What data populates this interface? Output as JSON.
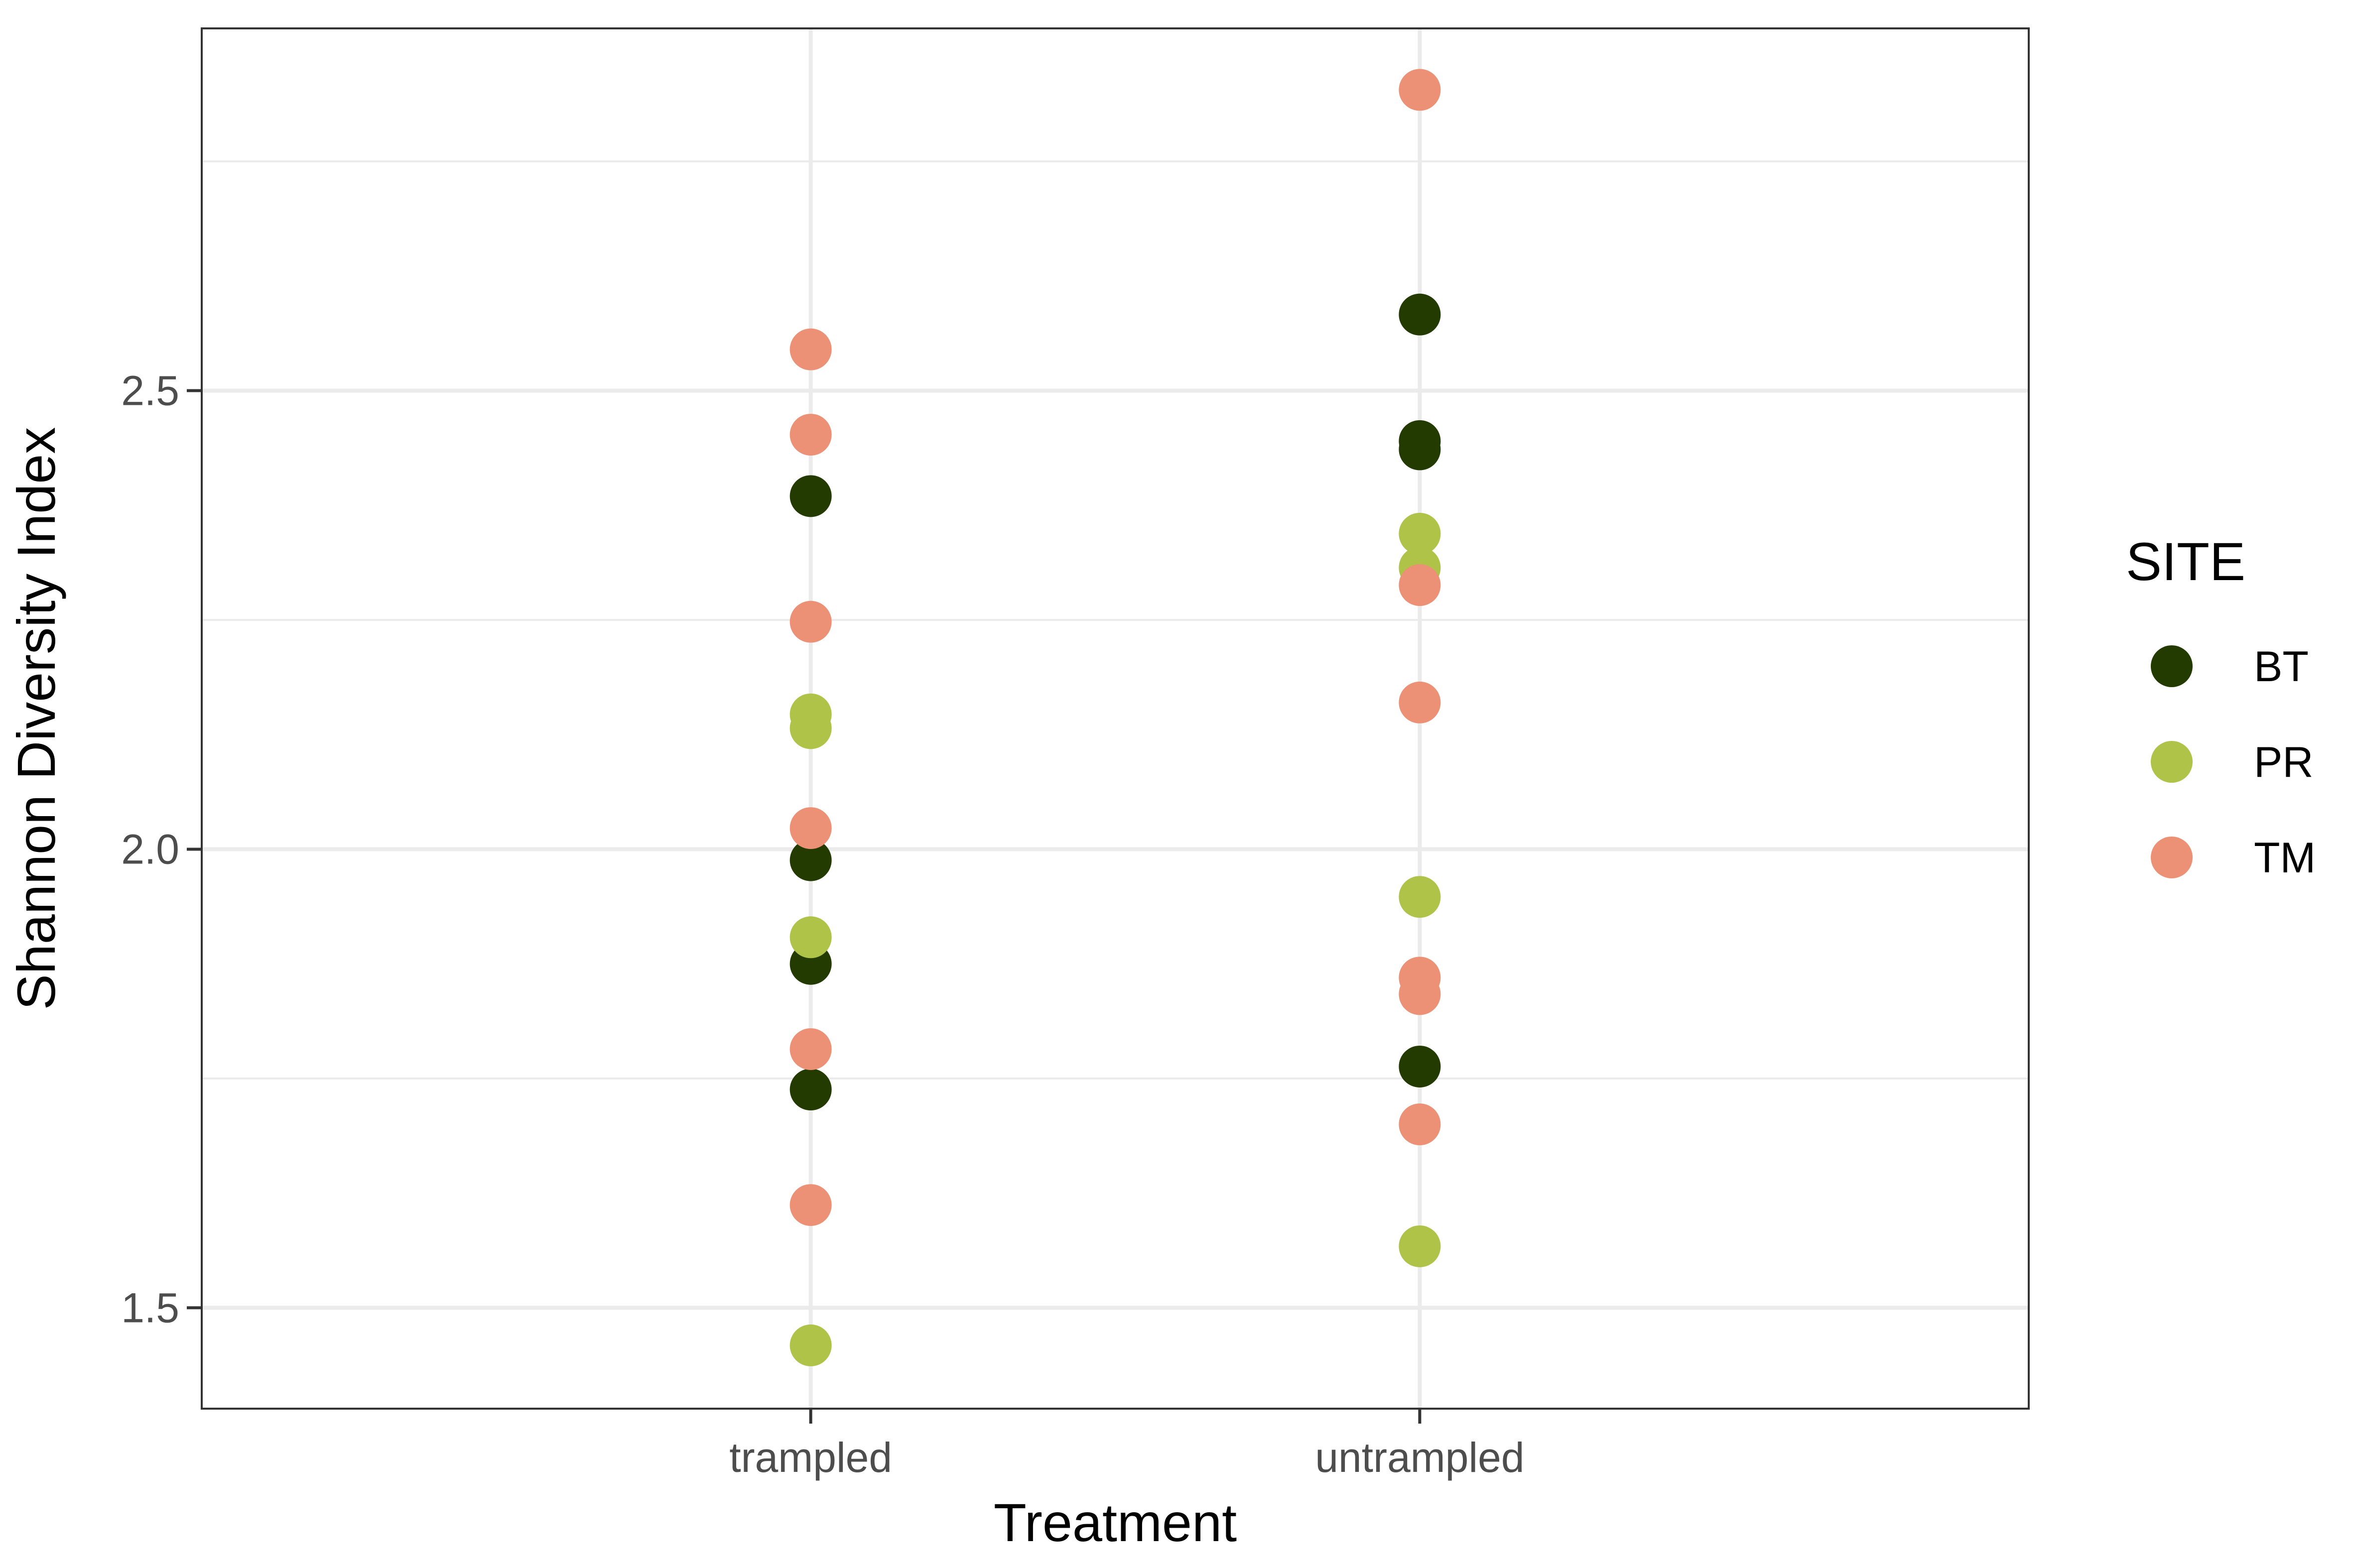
{
  "chart_data": {
    "type": "scatter",
    "xlabel": "Treatment",
    "ylabel": "Shannon Diversity Index",
    "categories": [
      "trampled",
      "untrampled"
    ],
    "ylim": [
      1.39,
      2.895
    ],
    "yticks": [
      1.5,
      2.0,
      2.5
    ],
    "ytick_labels": [
      "1.5",
      "2.0",
      "2.5"
    ],
    "grid": true,
    "legend": {
      "title": "SITE",
      "placement": "right"
    },
    "series": [
      {
        "name": "BT",
        "color": "#233A00",
        "points": [
          {
            "x": "trampled",
            "y": 2.385
          },
          {
            "x": "trampled",
            "y": 1.988
          },
          {
            "x": "trampled",
            "y": 1.875
          },
          {
            "x": "trampled",
            "y": 1.738
          },
          {
            "x": "untrampled",
            "y": 2.583
          },
          {
            "x": "untrampled",
            "y": 2.445
          },
          {
            "x": "untrampled",
            "y": 2.436
          },
          {
            "x": "untrampled",
            "y": 1.763
          }
        ]
      },
      {
        "name": "PR",
        "color": "#AEC347",
        "points": [
          {
            "x": "trampled",
            "y": 2.147
          },
          {
            "x": "trampled",
            "y": 2.132
          },
          {
            "x": "trampled",
            "y": 1.904
          },
          {
            "x": "trampled",
            "y": 1.459
          },
          {
            "x": "untrampled",
            "y": 2.344
          },
          {
            "x": "untrampled",
            "y": 2.307
          },
          {
            "x": "untrampled",
            "y": 1.948
          },
          {
            "x": "untrampled",
            "y": 1.567
          }
        ]
      },
      {
        "name": "TM",
        "color": "#EC9176",
        "points": [
          {
            "x": "trampled",
            "y": 2.545
          },
          {
            "x": "trampled",
            "y": 2.452
          },
          {
            "x": "trampled",
            "y": 2.248
          },
          {
            "x": "trampled",
            "y": 2.023
          },
          {
            "x": "trampled",
            "y": 1.782
          },
          {
            "x": "trampled",
            "y": 1.612
          },
          {
            "x": "untrampled",
            "y": 2.828
          },
          {
            "x": "untrampled",
            "y": 2.288
          },
          {
            "x": "untrampled",
            "y": 2.16
          },
          {
            "x": "untrampled",
            "y": 1.86
          },
          {
            "x": "untrampled",
            "y": 1.842
          },
          {
            "x": "untrampled",
            "y": 1.7
          }
        ]
      }
    ]
  }
}
